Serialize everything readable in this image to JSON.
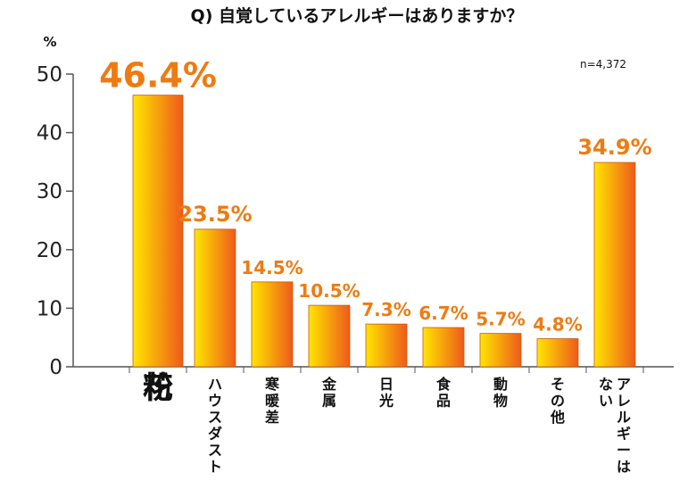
{
  "header": {
    "title": "Q) 自覚しているアレルギーはありますか？",
    "unit_label": "%",
    "sample_note": "n=4,372"
  },
  "chart_data": {
    "type": "bar",
    "title": "Q) 自覚しているアレルギーはありますか？",
    "xlabel": "",
    "ylabel": "%",
    "ylim": [
      0,
      50
    ],
    "yticks": [
      0,
      10,
      20,
      30,
      40,
      50
    ],
    "grid": false,
    "categories": [
      {
        "lines": [
          "花",
          "粉"
        ]
      },
      {
        "lines": [
          "ハウスダスト"
        ]
      },
      {
        "lines": [
          "寒暖差"
        ]
      },
      {
        "lines": [
          "金属"
        ]
      },
      {
        "lines": [
          "日光"
        ]
      },
      {
        "lines": [
          "食品"
        ]
      },
      {
        "lines": [
          "動物"
        ]
      },
      {
        "lines": [
          "その他"
        ]
      },
      {
        "lines": [
          "アレルギーは",
          "ない"
        ]
      }
    ],
    "values": [
      46.4,
      23.5,
      14.5,
      10.5,
      7.3,
      6.7,
      5.7,
      4.8,
      34.9
    ],
    "value_labels": [
      "46.4%",
      "23.5%",
      "14.5%",
      "10.5%",
      "7.3%",
      "6.7%",
      "5.7%",
      "4.8%",
      "34.9%"
    ],
    "colors": {
      "bar_left": "#ffe600",
      "bar_right": "#ee5a1c",
      "value_label": "#ee7b12",
      "axis": "#555555"
    }
  }
}
